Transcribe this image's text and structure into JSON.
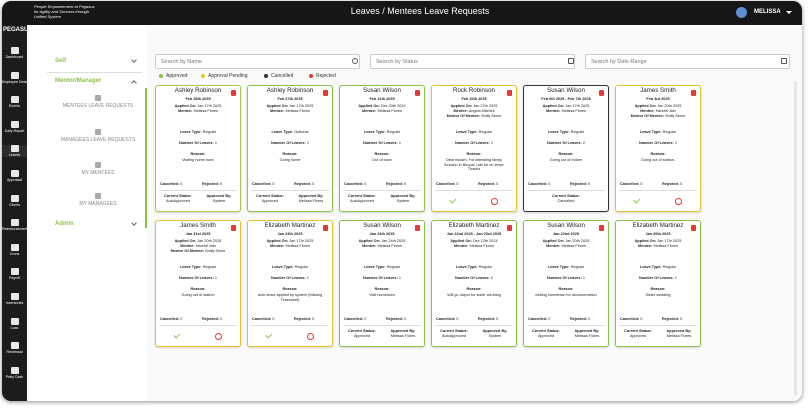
{
  "header": {
    "tagline": [
      "People Empowerment at Pegasus",
      "for Agility and Success through",
      "Unified System"
    ],
    "logo": "PEGASUS",
    "title": "Leaves / Mentees Leave Requests",
    "user": "MELISSA"
  },
  "nav": [
    "Dashboard",
    "Employee Details",
    "Events",
    "Daily Report",
    "Leaves",
    "Appraisal",
    "Clients",
    "Reimbursement",
    "Crons",
    "Payroll",
    "Inventories",
    "Loan",
    "Redressal",
    "Petty Cash"
  ],
  "menu": {
    "self": "Self",
    "mentor": "Mentor/Manager",
    "items": [
      "MENTEES LEAVE REQUESTS",
      "MANAGEES LEAVE REQUESTS",
      "MY MENTEES",
      "MY MANAGEES"
    ],
    "admin": "Admin"
  },
  "filters": [
    "Search by Name",
    "Search by Status",
    "Search by Date Range"
  ],
  "legend": [
    {
      "label": "Approved",
      "color": "#8bc34a"
    },
    {
      "label": "Approval Pending",
      "color": "#e6c229"
    },
    {
      "label": "Cancelled",
      "color": "#333333"
    },
    {
      "label": "Rejected",
      "color": "#e53935"
    }
  ],
  "labels": {
    "applied": "Applied On:",
    "mentee": "Mentee:",
    "mentor": "Mentor Of Mentee:",
    "type": "Leave Type:",
    "leaves": "Number Of Leaves:",
    "reason": "Reason:",
    "cancelled": "Cancelled:",
    "rejected": "Rejected:",
    "status": "Current Status:",
    "approved_by": "Approved By:"
  },
  "cards": [
    {
      "name": "Ashley Robinson",
      "date": "Feb 28th 2025",
      "applied": "Jan 17th 2025",
      "mentee": "Melissa Flores",
      "type": "Regular",
      "leaves": 1,
      "reason": "Visiting home town",
      "cancelled": 0,
      "rejected": 0,
      "status": "AutoApproved",
      "approved_by": "System",
      "border_color": "#a9c94a"
    },
    {
      "name": "Ashley Robinson",
      "date": "Feb 27th 2025",
      "applied": "Jan 17th 2025",
      "mentee": "Melissa Flores",
      "type": "Optional",
      "leaves": 1,
      "reason": "Going home",
      "cancelled": 0,
      "rejected": 0,
      "status": "Approved",
      "approved_by": "Melissa Flores",
      "border_color": "#8bc34a"
    },
    {
      "name": "Susan Wilson",
      "date": "Feb 12th 2025",
      "applied": "Dec 20th 2024",
      "mentee": "Melissa Flores",
      "type": "Regular",
      "leaves": 1,
      "reason": "Out of town",
      "cancelled": 0,
      "rejected": 0,
      "status": "AutoApproved",
      "approved_by": "System",
      "border_color": "#8bc34a"
    },
    {
      "name": "Rock Robinson",
      "date": "Feb 10th 2025",
      "applied": "Jan 27th 2025",
      "mentee": "Angela Mitchell",
      "mentor": "Smily Stone",
      "type": "Regular",
      "leaves": 1,
      "reason": "Dear ma'am, For attending family function in Bhopal I will be on leave Thanks",
      "cancelled": 0,
      "rejected": 0,
      "border_color": "#e6c229"
    },
    {
      "name": "Susan Wilson",
      "date": "Feb 6th 2025 - Feb 7th 2025",
      "applied": "Jan 17th 2025",
      "mentee": "Melissa Flores",
      "type": "Regular",
      "leaves": 2,
      "reason": "Going out of Indore",
      "cancelled": 0,
      "rejected": 0,
      "status": "Cancelled",
      "border_color": "#333333"
    },
    {
      "name": "James Smith",
      "date": "Feb 3rd 2025",
      "applied": "Jan 20th 2025",
      "mentee": "Harshit Jain",
      "mentor": "Smily Stone",
      "type": "Regular",
      "leaves": 1,
      "reason": "Going out of station.",
      "cancelled": 0,
      "rejected": 0,
      "border_color": "#e6c229"
    },
    {
      "name": "James Smith",
      "date": "Jan 31st 2025",
      "applied": "Jan 20th 2025",
      "mentee": "Harshit Jain",
      "mentor": "Smily Stone",
      "type": "Regular",
      "leaves": 1,
      "reason": "Going out of station",
      "cancelled": 0,
      "rejected": 0,
      "border_color": "#e6c229"
    },
    {
      "name": "Elizabeth Martinez",
      "date": "Jan 24th 2025",
      "applied": "Jan 17th 2025",
      "mentee": "Melissa Flores",
      "type": "Regular",
      "leaves": 1,
      "reason": "Auto leave applied by system (Missing Timesheet)",
      "cancelled": 0,
      "rejected": 0,
      "border_color": "#e6c229"
    },
    {
      "name": "Susan Wilson",
      "date": "Jan 24th 2025",
      "applied": "Jan 24th 2025",
      "mentee": "Melissa Flores",
      "type": "Regular",
      "leaves": 1,
      "reason": "Visit hometown",
      "cancelled": 0,
      "rejected": 0,
      "status": "Approved",
      "approved_by": "Melissa Flores",
      "border_color": "#8bc34a"
    },
    {
      "name": "Elizabeth Martinez",
      "date": "Jan 22nd 2025 - Jan 23rd 2025",
      "applied": "Dec 12th 2024",
      "mentee": "Melissa Flores",
      "type": "Regular",
      "leaves": 2,
      "reason": "Will go Jaipur for sister wedding",
      "cancelled": 0,
      "rejected": 0,
      "status": "AutoApproved",
      "approved_by": "System",
      "border_color": "#8bc34a"
    },
    {
      "name": "Susan Wilson",
      "date": "Jan 22nd 2025",
      "applied": "Jan 20th 2025",
      "mentee": "Melissa Flores",
      "type": "Regular",
      "leaves": 1,
      "reason": "visiting hometown for documentation",
      "cancelled": 0,
      "rejected": 0,
      "status": "Approved",
      "approved_by": "Melissa Flores",
      "border_color": "#8bc34a"
    },
    {
      "name": "Elizabeth Martinez",
      "date": "Jan 20th 2025",
      "applied": "Jan 17th 2025",
      "mentee": "Melissa Flores",
      "type": "Regular",
      "leaves": 1,
      "reason": "Sister wedding",
      "cancelled": 0,
      "rejected": 0,
      "status": "Approved",
      "approved_by": "Melissa Flores",
      "border_color": "#8bc34a"
    }
  ]
}
